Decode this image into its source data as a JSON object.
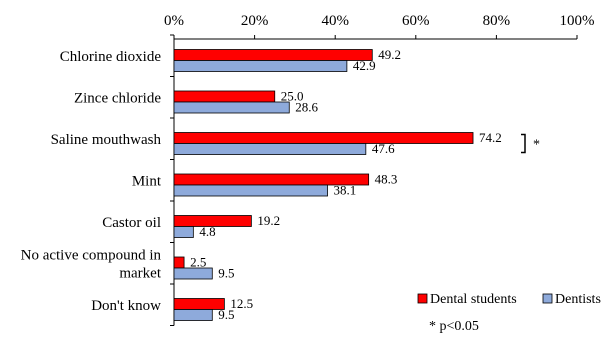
{
  "chart_data": {
    "type": "bar",
    "orientation": "horizontal",
    "categories": [
      "Chlorine dioxide",
      "Zince chloride",
      "Saline mouthwash",
      "Mint",
      "Castor oil",
      "No active compound in market",
      "Don't know"
    ],
    "category_label_lines": [
      [
        "Chlorine dioxide"
      ],
      [
        "Zince chloride"
      ],
      [
        "Saline mouthwash"
      ],
      [
        "Mint"
      ],
      [
        "Castor oil"
      ],
      [
        "No active compound in",
        "market"
      ],
      [
        "Don't know"
      ]
    ],
    "series": [
      {
        "name": "Dental students",
        "color": "#ff0000",
        "values": [
          49.2,
          25.0,
          74.2,
          48.3,
          19.2,
          2.5,
          12.5
        ],
        "labels": [
          "49.2",
          "25.0",
          "74.2",
          "48.3",
          "19.2",
          "2.5",
          "12.5"
        ]
      },
      {
        "name": "Dentists",
        "color": "#8eaadb",
        "values": [
          42.9,
          28.6,
          47.6,
          38.1,
          4.8,
          9.5,
          9.5
        ],
        "labels": [
          "42.9",
          "28.6",
          "47.6",
          "38.1",
          "4.8",
          "9.5",
          "9.5"
        ]
      }
    ],
    "x_ticks": [
      0,
      20,
      40,
      60,
      80,
      100
    ],
    "x_tick_labels": [
      "0%",
      "20%",
      "40%",
      "60%",
      "80%",
      "100%"
    ],
    "xlim": [
      0,
      100
    ],
    "x_axis_position": "top",
    "grid": false,
    "legend_position": "bottom-right",
    "annotations": [
      {
        "category": "Saline mouthwash",
        "text": "*",
        "style": "bracket"
      }
    ],
    "footnote": "* p<0.05",
    "title": "",
    "xlabel": "",
    "ylabel": ""
  }
}
